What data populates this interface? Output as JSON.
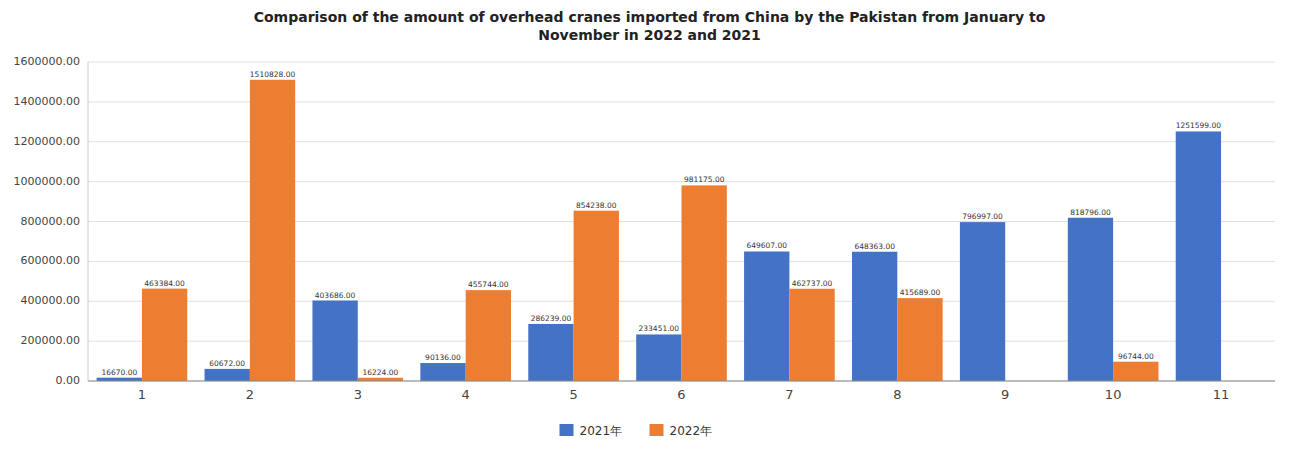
{
  "chart_data": {
    "type": "bar",
    "title": "Comparison of the amount of overhead cranes imported from China by the Pakistan from January to\nNovember in 2022 and 2021",
    "categories": [
      "1",
      "2",
      "3",
      "4",
      "5",
      "6",
      "7",
      "8",
      "9",
      "10",
      "11"
    ],
    "series": [
      {
        "name": "2021年",
        "color": "#4472c4",
        "values": [
          16670,
          60672,
          403686,
          90136,
          286239,
          233451,
          649607,
          648363,
          796997,
          818796,
          1251599
        ],
        "value_labels": [
          "16670.00",
          "60672.00",
          "403686.00",
          "90136.00",
          "286239.00",
          "233451.00",
          "649607.00",
          "648363.00",
          "796997.00",
          "818796.00",
          "1251599.00"
        ]
      },
      {
        "name": "2022年",
        "color": "#ed7d31",
        "values": [
          463384,
          1510828,
          16224,
          455744,
          854238,
          981175,
          462737,
          415689,
          0,
          96744,
          0
        ],
        "value_labels": [
          "463384.00",
          "1510828.00",
          "16224.00",
          "455744.00",
          "854238.00",
          "981175.00",
          "462737.00",
          "415689.00",
          null,
          "96744.00",
          null
        ]
      }
    ],
    "ylim": [
      0,
      1600000
    ],
    "yticks": [
      {
        "value": 0,
        "label": "0.00"
      },
      {
        "value": 200000,
        "label": "200000.00"
      },
      {
        "value": 400000,
        "label": "400000.00"
      },
      {
        "value": 600000,
        "label": "600000.00"
      },
      {
        "value": 800000,
        "label": "800000.00"
      },
      {
        "value": 1000000,
        "label": "1000000.00"
      },
      {
        "value": 1200000,
        "label": "1200000.00"
      },
      {
        "value": 1400000,
        "label": "1400000.00"
      },
      {
        "value": 1600000,
        "label": "1600000.00"
      }
    ],
    "grid": true,
    "legend": "bottom",
    "data_labels": true
  }
}
